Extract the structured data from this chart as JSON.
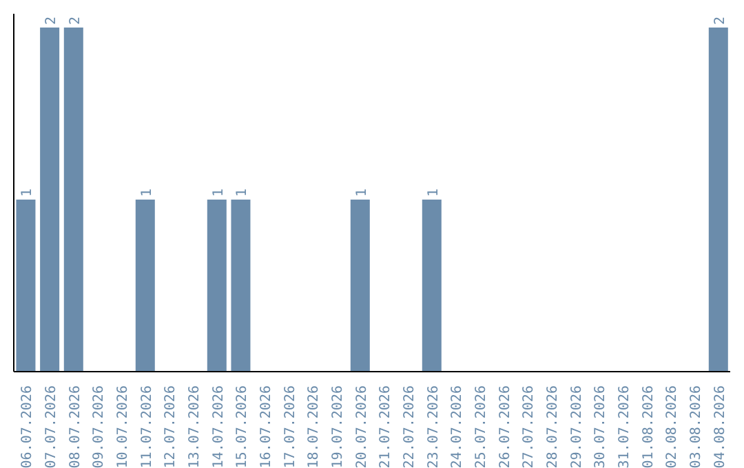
{
  "chart_data": {
    "type": "bar",
    "categories": [
      "06.07.2026",
      "07.07.2026",
      "08.07.2026",
      "09.07.2026",
      "10.07.2026",
      "11.07.2026",
      "12.07.2026",
      "13.07.2026",
      "14.07.2026",
      "15.07.2026",
      "16.07.2026",
      "17.07.2026",
      "18.07.2026",
      "19.07.2026",
      "20.07.2026",
      "21.07.2026",
      "22.07.2026",
      "23.07.2026",
      "24.07.2026",
      "25.07.2026",
      "26.07.2026",
      "27.07.2026",
      "28.07.2026",
      "29.07.2026",
      "30.07.2026",
      "31.07.2026",
      "01.08.2026",
      "02.08.2026",
      "03.08.2026",
      "04.08.2026"
    ],
    "values": [
      1,
      2,
      2,
      0,
      0,
      1,
      0,
      0,
      1,
      1,
      0,
      0,
      0,
      0,
      1,
      0,
      0,
      1,
      0,
      0,
      0,
      0,
      0,
      0,
      0,
      0,
      0,
      0,
      0,
      2
    ],
    "value_labels": [
      "1",
      "2",
      "2",
      null,
      null,
      "1",
      null,
      null,
      "1",
      "1",
      null,
      null,
      null,
      null,
      "1",
      null,
      null,
      "1",
      null,
      null,
      null,
      null,
      null,
      null,
      null,
      null,
      null,
      null,
      null,
      "2"
    ],
    "color": "#6b8cab"
  }
}
